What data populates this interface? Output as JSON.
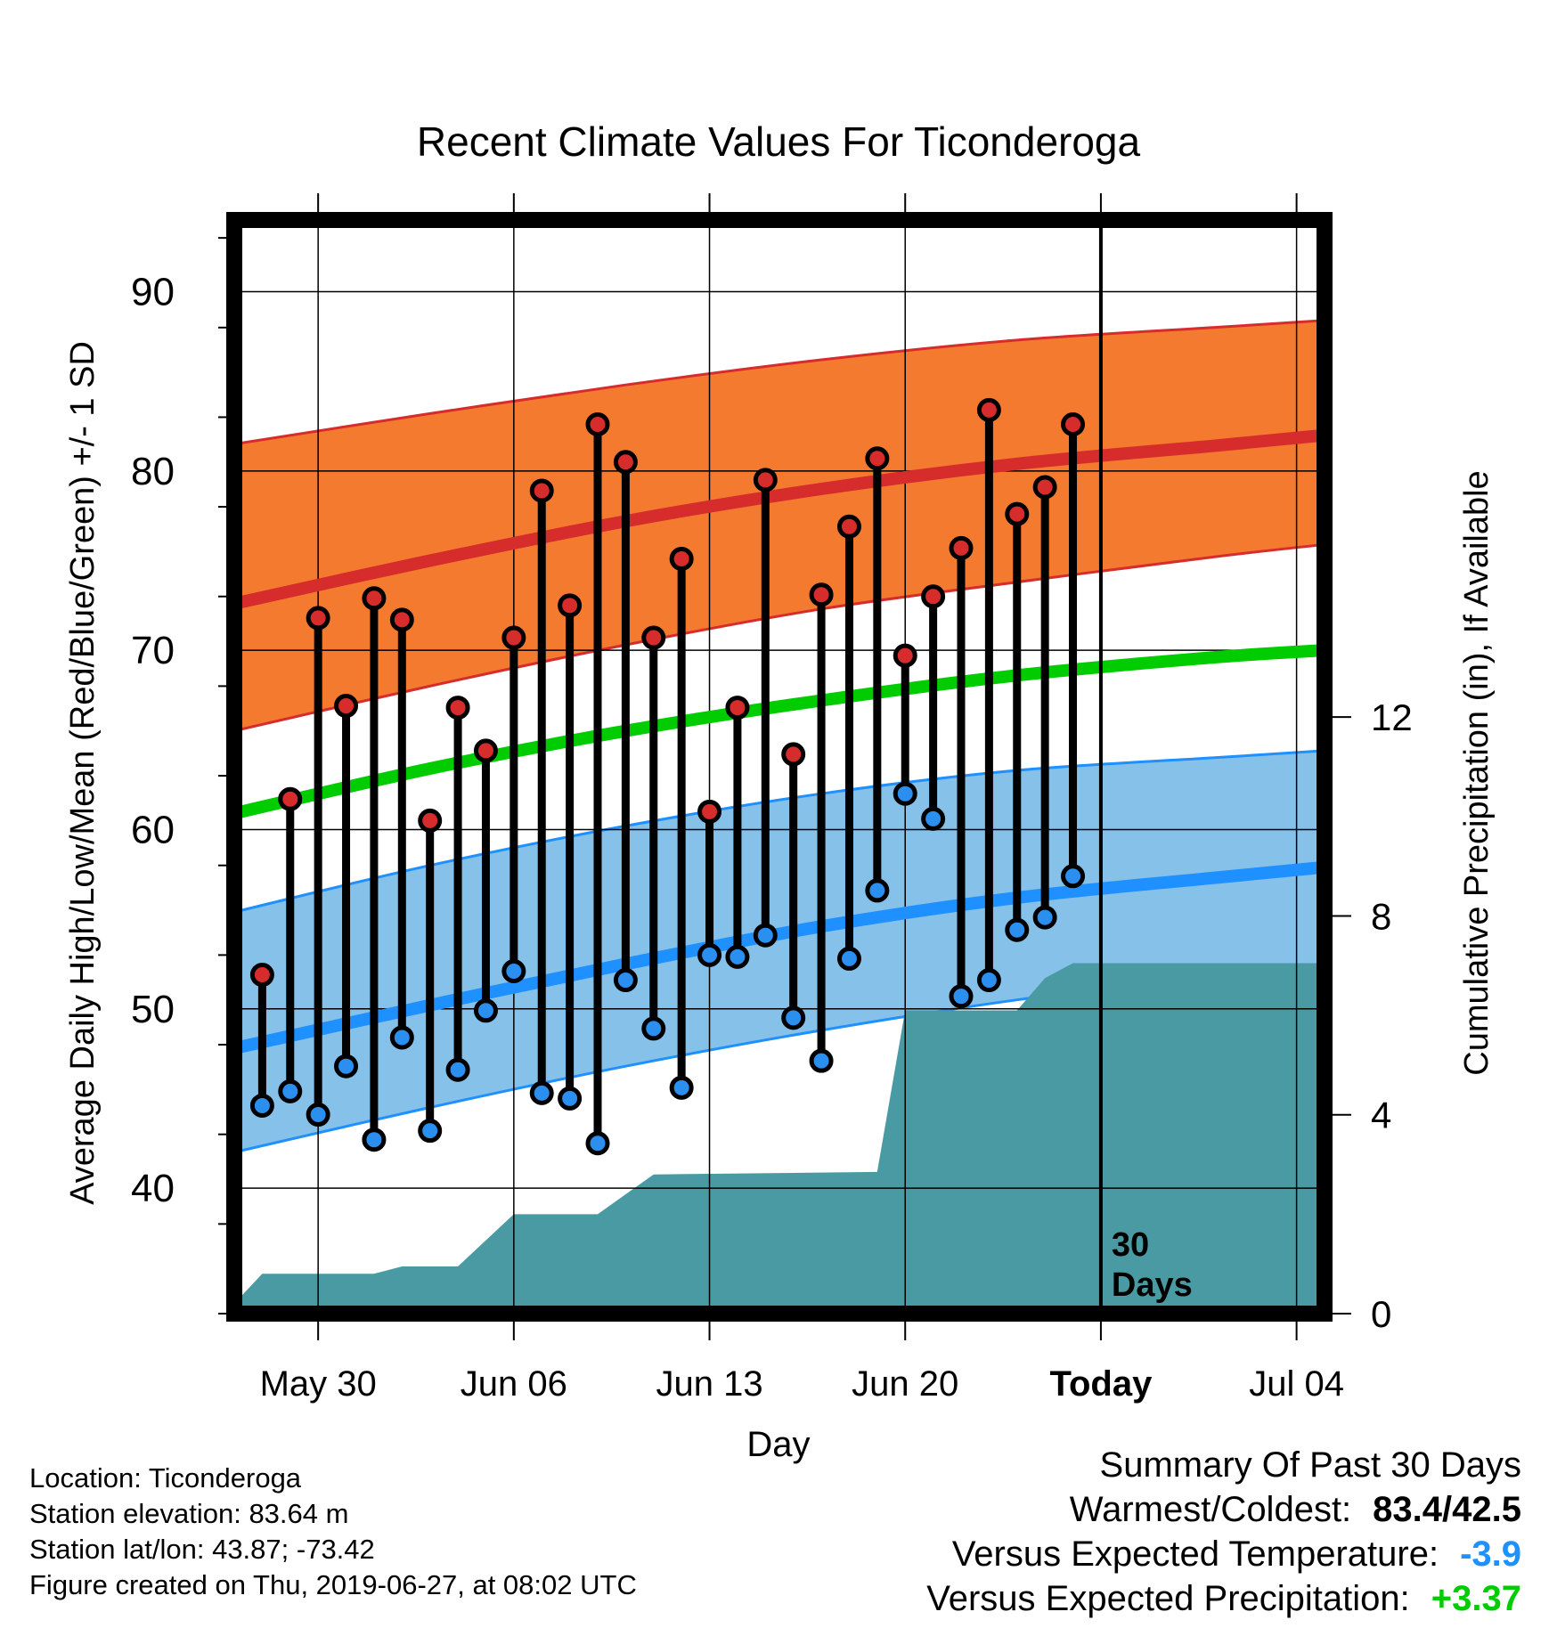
{
  "chart_data": {
    "type": "line",
    "title": "Recent Climate Values For Ticonderoga",
    "xlabel": "Day",
    "ylabel": "Average Daily High/Low/Mean (Red/Blue/Green) +/- 1 SD",
    "y2label": "Cumulative Precipitation (in), If Available",
    "ylim": [
      33,
      94
    ],
    "y2lim": [
      0,
      22
    ],
    "yticks": [
      40,
      50,
      60,
      70,
      80,
      90
    ],
    "y2ticks": [
      0,
      4,
      8,
      12
    ],
    "xlim": [
      "2019-05-27",
      "2019-07-05"
    ],
    "x_tick_labels": [
      {
        "date": "2019-05-30",
        "label": "May 30"
      },
      {
        "date": "2019-06-06",
        "label": "Jun 06"
      },
      {
        "date": "2019-06-13",
        "label": "Jun 13"
      },
      {
        "date": "2019-06-20",
        "label": "Jun 20"
      },
      {
        "date": "2019-06-27",
        "label": "Today",
        "bold": true
      },
      {
        "date": "2019-07-04",
        "label": "Jul 04"
      }
    ],
    "today_marker": {
      "date": "2019-06-27",
      "label": [
        "30",
        "Days"
      ]
    },
    "grid": true,
    "normal_curves": {
      "dates": [
        "2019-05-27",
        "2019-06-03",
        "2019-06-10",
        "2019-06-17",
        "2019-06-24",
        "2019-07-01",
        "2019-07-05"
      ],
      "high_mean": [
        72.6,
        75.0,
        77.2,
        79.0,
        80.4,
        81.4,
        82.0
      ],
      "high_upper": [
        81.5,
        83.2,
        84.8,
        86.2,
        87.3,
        88.0,
        88.4
      ],
      "high_lower": [
        65.5,
        68.0,
        70.3,
        72.3,
        73.8,
        75.2,
        75.9
      ],
      "mean": [
        60.9,
        63.4,
        65.5,
        67.2,
        68.6,
        69.6,
        70.0
      ],
      "low_mean": [
        47.8,
        50.2,
        52.5,
        54.6,
        56.2,
        57.3,
        57.9
      ],
      "low_upper": [
        55.4,
        58.0,
        60.2,
        62.0,
        63.3,
        64.0,
        64.4
      ],
      "low_lower": [
        42.0,
        44.5,
        46.8,
        48.8,
        50.5,
        51.8,
        52.3
      ]
    },
    "series": [
      {
        "name": "High",
        "dates": [
          "2019-05-28",
          "2019-05-29",
          "2019-05-30",
          "2019-05-31",
          "2019-06-01",
          "2019-06-02",
          "2019-06-03",
          "2019-06-04",
          "2019-06-05",
          "2019-06-06",
          "2019-06-07",
          "2019-06-08",
          "2019-06-09",
          "2019-06-10",
          "2019-06-11",
          "2019-06-12",
          "2019-06-13",
          "2019-06-14",
          "2019-06-15",
          "2019-06-16",
          "2019-06-17",
          "2019-06-18",
          "2019-06-19",
          "2019-06-20",
          "2019-06-21",
          "2019-06-22",
          "2019-06-23",
          "2019-06-24",
          "2019-06-25",
          "2019-06-26"
        ],
        "values": [
          51.9,
          61.7,
          71.8,
          66.9,
          72.9,
          71.7,
          60.5,
          66.8,
          64.4,
          70.7,
          78.9,
          72.5,
          82.6,
          80.5,
          70.7,
          75.1,
          61.0,
          66.8,
          79.5,
          64.2,
          73.1,
          76.9,
          80.7,
          69.7,
          73.0,
          75.7,
          83.4,
          77.6,
          79.1,
          82.6
        ]
      },
      {
        "name": "Low",
        "dates": [
          "2019-05-28",
          "2019-05-29",
          "2019-05-30",
          "2019-05-31",
          "2019-06-01",
          "2019-06-02",
          "2019-06-03",
          "2019-06-04",
          "2019-06-05",
          "2019-06-06",
          "2019-06-07",
          "2019-06-08",
          "2019-06-09",
          "2019-06-10",
          "2019-06-11",
          "2019-06-12",
          "2019-06-13",
          "2019-06-14",
          "2019-06-15",
          "2019-06-16",
          "2019-06-17",
          "2019-06-18",
          "2019-06-19",
          "2019-06-20",
          "2019-06-21",
          "2019-06-22",
          "2019-06-23",
          "2019-06-24",
          "2019-06-25",
          "2019-06-26"
        ],
        "values": [
          44.6,
          45.4,
          44.1,
          46.8,
          42.7,
          48.4,
          43.2,
          46.6,
          49.9,
          52.1,
          45.3,
          45.0,
          42.5,
          51.6,
          48.9,
          45.6,
          53.0,
          52.9,
          54.1,
          49.5,
          47.1,
          52.8,
          56.6,
          62.0,
          60.6,
          50.7,
          51.6,
          54.4,
          55.1,
          57.4
        ]
      },
      {
        "name": "Cumulative Precipitation",
        "dates": [
          "2019-05-27",
          "2019-05-28",
          "2019-06-01",
          "2019-06-02",
          "2019-06-04",
          "2019-06-06",
          "2019-06-09",
          "2019-06-10",
          "2019-06-11",
          "2019-06-19",
          "2019-06-20",
          "2019-06-24",
          "2019-06-25",
          "2019-06-26",
          "2019-06-27",
          "2019-07-05"
        ],
        "values": [
          0.2,
          0.8,
          0.8,
          0.95,
          0.95,
          2.0,
          2.0,
          2.4,
          2.8,
          2.85,
          6.1,
          6.1,
          6.75,
          7.05,
          7.05,
          7.05
        ]
      }
    ]
  },
  "info": {
    "location": "Location: Ticonderoga",
    "elevation": "Station elevation: 83.64 m",
    "latlon": "Station lat/lon: 43.87; -73.42",
    "created": "Figure created on Thu, 2019-06-27, at 08:02 UTC"
  },
  "summary": {
    "title": "Summary Of Past 30 Days",
    "warmest_label": "Warmest/Coldest:",
    "warmest_value": "83.4/42.5",
    "temp_label": "Versus Expected Temperature:",
    "temp_value": "-3.9",
    "precip_label": "Versus Expected Precipitation:",
    "precip_value": "+3.37"
  },
  "colors": {
    "high_band": "#f47a30",
    "high_line": "#d62c2c",
    "mean_line": "#00cc00",
    "low_band": "#85c1e9",
    "low_line": "#1e90ff",
    "precip": "#4a9aa4",
    "high_dot": "#d62c2c",
    "low_dot": "#2b8fef"
  }
}
